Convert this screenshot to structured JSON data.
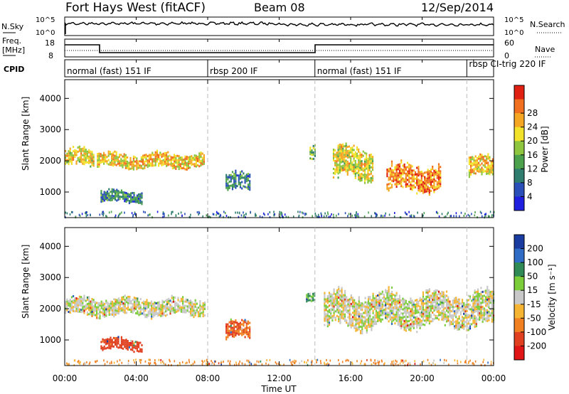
{
  "header": {
    "title": "Fort Hays West (fitACF)",
    "beam": "Beam 08",
    "date": "12/Sep/2014"
  },
  "panels": {
    "nsky_label": "N.Sky",
    "nsearch_label": "N.Search",
    "nsky_ticks": [
      "10^5",
      "10^0"
    ],
    "nsearch_ticks": [
      "10^5",
      "10^0"
    ],
    "freq_label_1": "Freq.",
    "freq_label_2": "[MHz]",
    "freq_ticks": [
      "18",
      "8"
    ],
    "nave_label": "Nave",
    "nave_ticks": [
      "60",
      "0"
    ],
    "cpid_label": "CPID",
    "cpid_segments": [
      {
        "label": "normal (fast) 151 IF",
        "start_hr": 0.0,
        "end_hr": 8.0
      },
      {
        "label": "rbsp 200 IF",
        "start_hr": 8.0,
        "end_hr": 14.0
      },
      {
        "label": "normal (fast) 151 IF",
        "start_hr": 14.0,
        "end_hr": 22.5
      },
      {
        "label": "rbsp CI-trig 220 IF",
        "start_hr": 22.5,
        "end_hr": 24.0
      }
    ]
  },
  "axes": {
    "xlabel": "Time UT",
    "x_ticks": [
      "00:00",
      "04:00",
      "08:00",
      "12:00",
      "16:00",
      "20:00",
      "00:00"
    ],
    "ylabel": "Slant Range [km]",
    "y_ticks": [
      "1000",
      "2000",
      "3000",
      "4000"
    ]
  },
  "colorbars": {
    "power_label": "Power [dB]",
    "power_ticks": [
      "4",
      "8",
      "12",
      "16",
      "20",
      "24",
      "28"
    ],
    "velocity_label": "Velocity [m s⁻¹]",
    "velocity_ticks": [
      "200",
      "100",
      "50",
      "15",
      "-15",
      "-50",
      "-100",
      "-200"
    ]
  },
  "colors": {
    "power": [
      "#1f1fe0",
      "#2a4fb8",
      "#2e7d6e",
      "#4ca24c",
      "#8ec63f",
      "#f2e22a",
      "#f5a623",
      "#f07020",
      "#e02010"
    ],
    "velocity": [
      "#1a3ca0",
      "#2f6cc6",
      "#2f8a55",
      "#7ccd3a",
      "#c8c8c8",
      "#f5b533",
      "#f08020",
      "#e04020",
      "#e01515"
    ]
  },
  "chart_data": [
    {
      "type": "heatmap",
      "title": "Power",
      "x_range_hours": [
        0,
        24
      ],
      "y_range_km": [
        180,
        4600
      ],
      "colorbar_range_dB": [
        0,
        32
      ],
      "echo_regions": [
        {
          "t0": 0.0,
          "t1": 1.6,
          "r_center": 2150,
          "r_width": 300,
          "power_dB": 20
        },
        {
          "t0": 1.8,
          "t1": 7.8,
          "r_center": 2050,
          "r_width": 250,
          "power_dB": 22
        },
        {
          "t0": 2.0,
          "t1": 4.3,
          "r_center": 900,
          "r_width": 200,
          "power_dB": 8
        },
        {
          "t0": 9.0,
          "t1": 10.4,
          "r_center": 1350,
          "r_width": 300,
          "power_dB": 8
        },
        {
          "t0": 13.7,
          "t1": 14.0,
          "r_center": 2300,
          "r_width": 250,
          "power_dB": 14
        },
        {
          "t0": 15.0,
          "t1": 17.2,
          "r_center": 1950,
          "r_width": 550,
          "power_dB": 20
        },
        {
          "t0": 18.0,
          "t1": 21.0,
          "r_center": 1500,
          "r_width": 450,
          "power_dB": 26
        },
        {
          "t0": 22.6,
          "t1": 24.0,
          "r_center": 1850,
          "r_width": 350,
          "power_dB": 22
        }
      ]
    },
    {
      "type": "heatmap",
      "title": "Velocity",
      "x_range_hours": [
        0,
        24
      ],
      "y_range_km": [
        180,
        4600
      ],
      "colorbar_range_ms": [
        -200,
        200
      ],
      "echo_regions": [
        {
          "t0": 0.0,
          "t1": 7.8,
          "r_center": 2100,
          "r_width": 300,
          "velocity_ms": 0
        },
        {
          "t0": 2.0,
          "t1": 4.3,
          "r_center": 900,
          "r_width": 200,
          "velocity_ms": -120
        },
        {
          "t0": 9.0,
          "t1": 10.4,
          "r_center": 1350,
          "r_width": 300,
          "velocity_ms": -80
        },
        {
          "t0": 14.5,
          "t1": 24.0,
          "r_center": 2000,
          "r_width": 600,
          "velocity_ms": 0
        },
        {
          "t0": 13.5,
          "t1": 14.0,
          "r_center": 2400,
          "r_width": 150,
          "velocity_ms": 40
        }
      ]
    }
  ]
}
